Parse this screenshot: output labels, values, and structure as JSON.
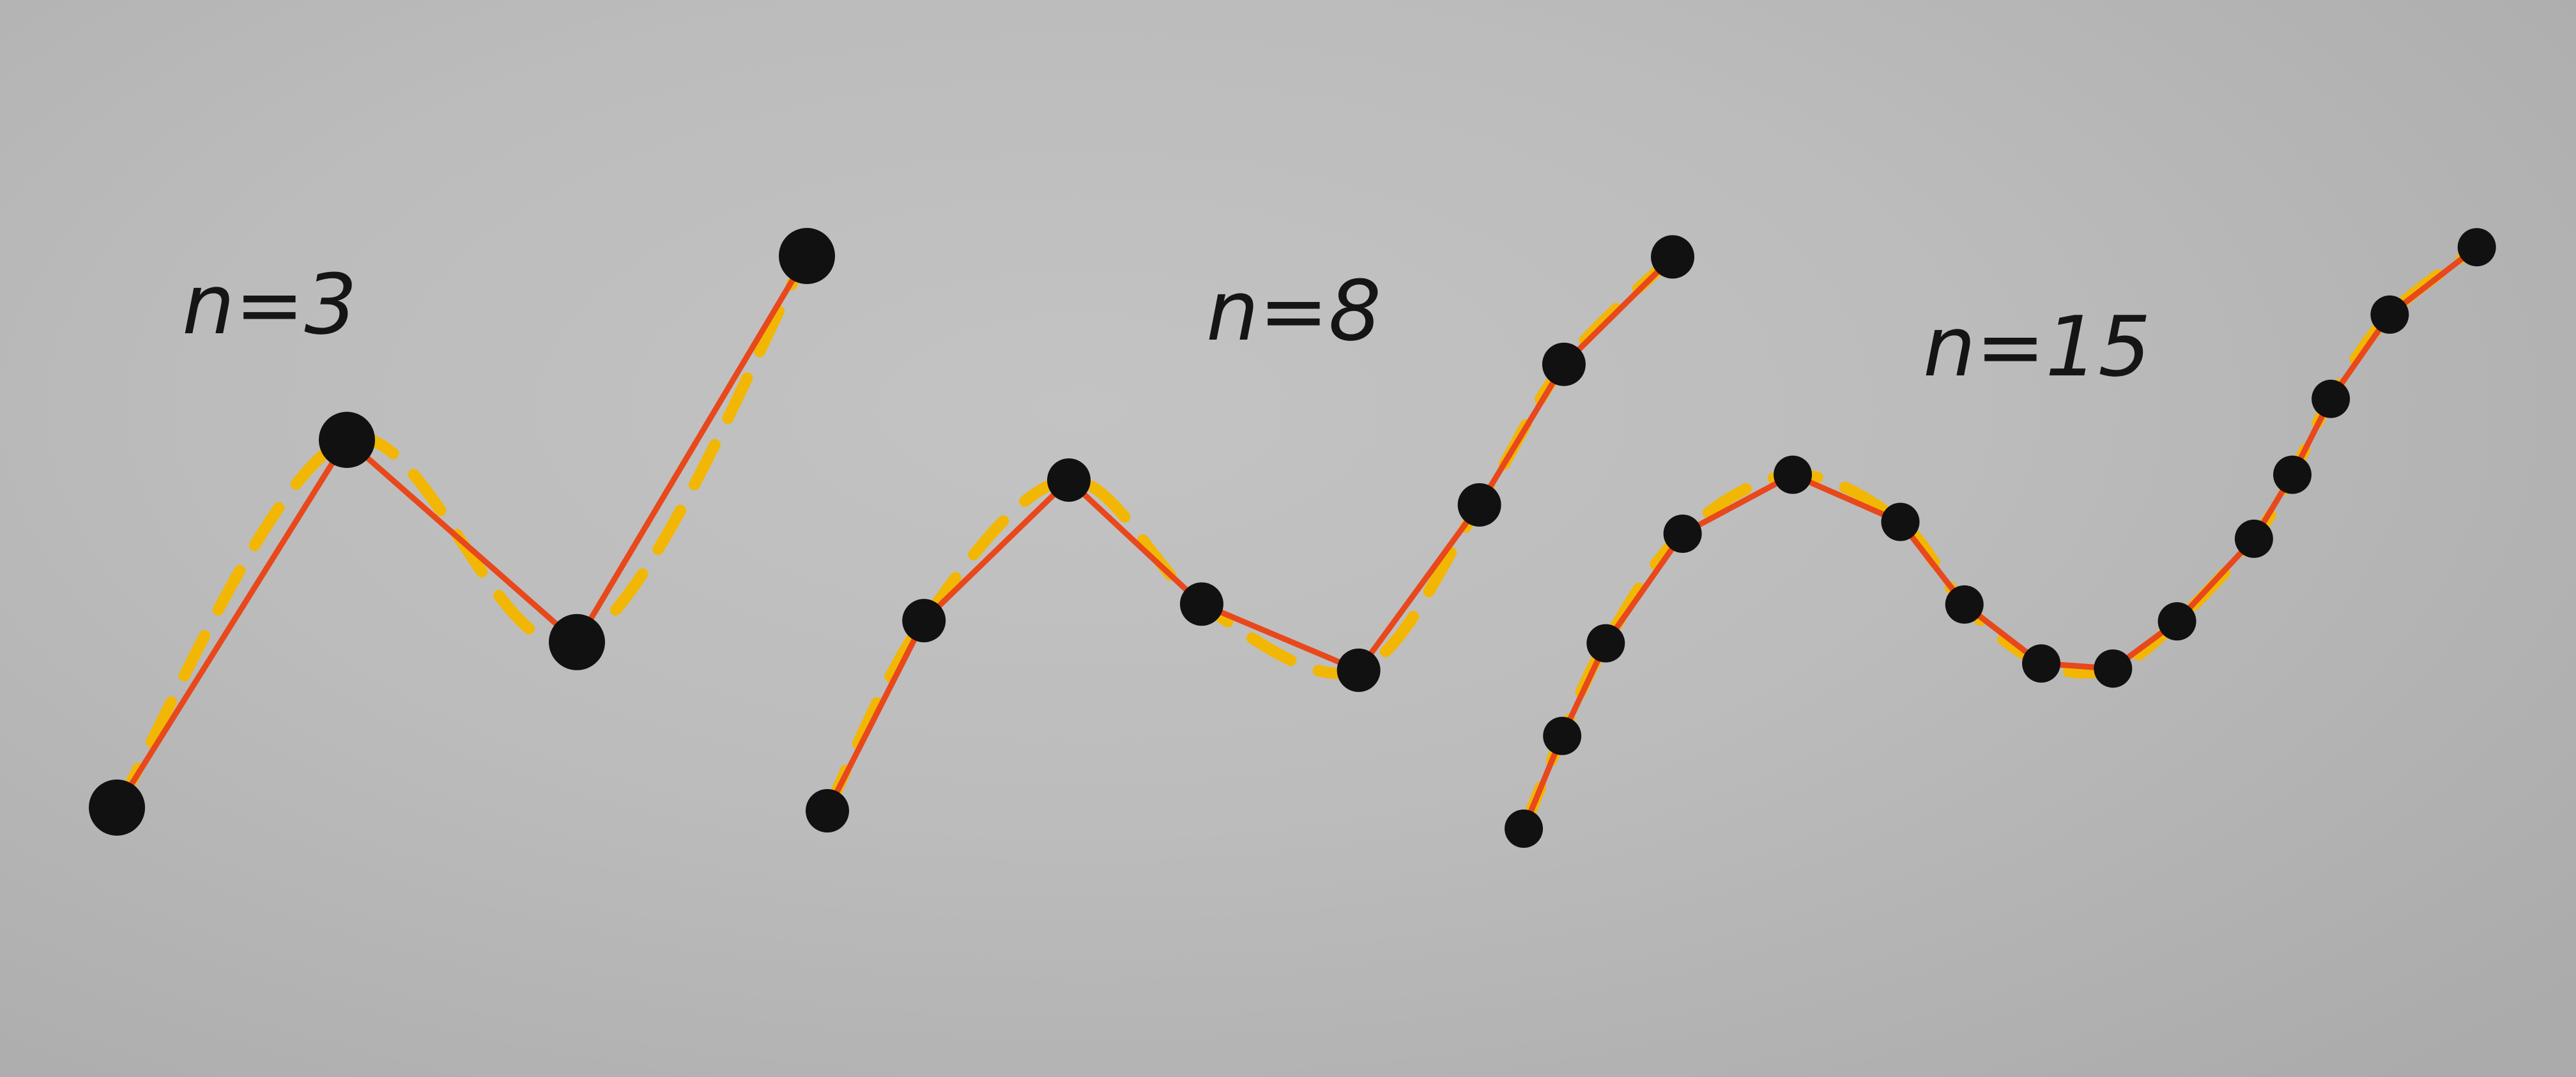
{
  "panels": [
    {
      "label": "n=3",
      "points": [
        [
          0,
          0
        ],
        [
          1,
          2
        ],
        [
          2,
          0.9
        ],
        [
          3,
          3
        ]
      ]
    },
    {
      "label": "n=8",
      "points": [
        [
          0,
          0
        ],
        [
          0.4,
          1.15
        ],
        [
          1,
          2
        ],
        [
          1.55,
          1.25
        ],
        [
          2.2,
          0.85
        ],
        [
          2.7,
          1.85
        ],
        [
          3.05,
          2.7
        ],
        [
          3.5,
          3.35
        ]
      ]
    },
    {
      "label": "n=15",
      "points": [
        [
          0,
          0
        ],
        [
          0.15,
          0.55
        ],
        [
          0.32,
          1.1
        ],
        [
          0.62,
          1.75
        ],
        [
          1.05,
          2.1
        ],
        [
          1.47,
          1.82
        ],
        [
          1.72,
          1.33
        ],
        [
          2.02,
          0.98
        ],
        [
          2.3,
          0.95
        ],
        [
          2.55,
          1.23
        ],
        [
          2.85,
          1.72
        ],
        [
          3.0,
          2.1
        ],
        [
          3.15,
          2.55
        ],
        [
          3.38,
          3.05
        ],
        [
          3.72,
          3.45
        ]
      ]
    }
  ],
  "colors": {
    "background": "#bdbdbd",
    "guide_curve": "#f2b705",
    "polyline": "#e8481b",
    "point": "#111111",
    "label": "#151515"
  }
}
